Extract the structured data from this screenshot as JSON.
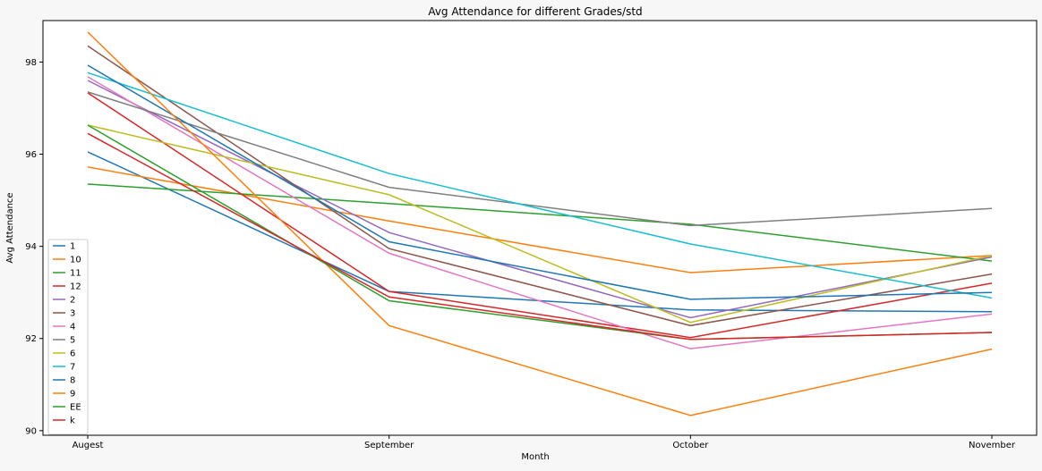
{
  "chart_data": {
    "type": "line",
    "title": "Avg Attendance for different Grades/std",
    "xlabel": "Month",
    "ylabel": "Avg Attendance",
    "categories": [
      "Augest",
      "September",
      "October",
      "November"
    ],
    "ylim": [
      89.9,
      98.9
    ],
    "yticks": [
      90,
      92,
      94,
      96,
      98
    ],
    "grid": false,
    "legend": "lower-left",
    "series": [
      {
        "name": "1",
        "color": "#1f77b4",
        "values": [
          96.05,
          93.02,
          92.62,
          92.58
        ]
      },
      {
        "name": "10",
        "color": "#ff7f0e",
        "values": [
          95.72,
          94.55,
          93.43,
          93.8
        ]
      },
      {
        "name": "11",
        "color": "#2ca02c",
        "values": [
          95.35,
          94.93,
          94.48,
          93.68
        ]
      },
      {
        "name": "12",
        "color": "#d62728",
        "values": [
          97.33,
          93.02,
          92.02,
          93.2
        ]
      },
      {
        "name": "2",
        "color": "#9467bd",
        "values": [
          97.6,
          94.3,
          92.45,
          93.77
        ]
      },
      {
        "name": "3",
        "color": "#8c564b",
        "values": [
          98.35,
          93.95,
          92.28,
          93.4
        ]
      },
      {
        "name": "4",
        "color": "#e377c2",
        "values": [
          97.68,
          93.85,
          91.78,
          92.53
        ]
      },
      {
        "name": "5",
        "color": "#7f7f7f",
        "values": [
          97.35,
          95.28,
          94.45,
          94.82
        ]
      },
      {
        "name": "6",
        "color": "#bcbd22",
        "values": [
          96.63,
          95.12,
          92.35,
          93.8
        ]
      },
      {
        "name": "7",
        "color": "#17becf",
        "values": [
          97.77,
          95.58,
          94.05,
          92.88
        ]
      },
      {
        "name": "8",
        "color": "#1f77b4",
        "values": [
          97.93,
          94.1,
          92.85,
          93.0
        ]
      },
      {
        "name": "9",
        "color": "#ff7f0e",
        "values": [
          98.65,
          92.28,
          90.33,
          91.77
        ]
      },
      {
        "name": "EE",
        "color": "#2ca02c",
        "values": [
          96.63,
          92.82,
          91.98,
          92.13
        ]
      },
      {
        "name": "k",
        "color": "#d62728",
        "values": [
          96.45,
          92.9,
          91.98,
          92.13
        ]
      }
    ]
  }
}
